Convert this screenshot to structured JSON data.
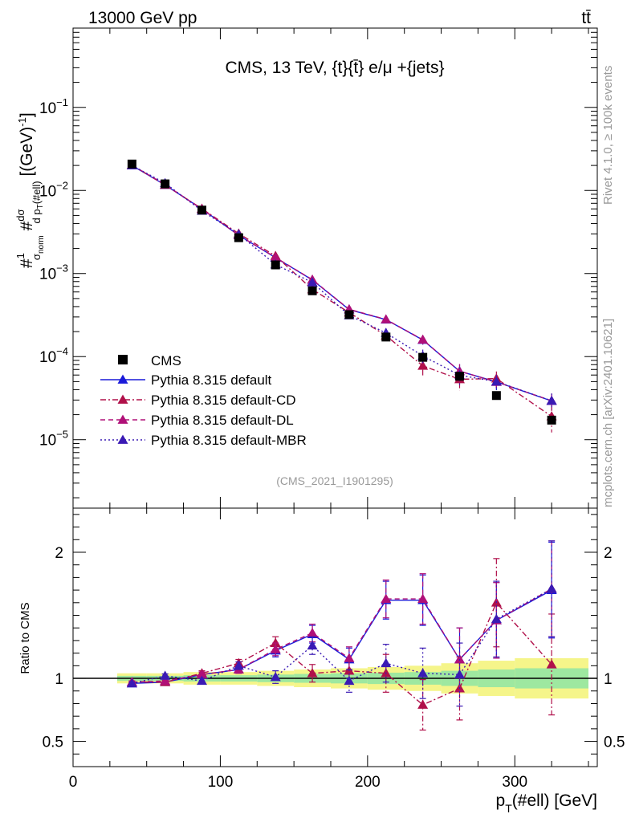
{
  "header": {
    "energy_label": "13000 GeV pp",
    "process_label": "tt̄"
  },
  "side_labels": {
    "rivet": "Rivet 4.1.0, ≥ 100k events",
    "site": "mcplots.cern.ch [arXiv:2401.10621]"
  },
  "chart_data": {
    "type": "scatter",
    "title": "CMS, 13 TeV, {t}{t̄} e/μ +{jets}",
    "analysis_id": "(CMS_2021_I1901295)",
    "xlabel": "p_T(#ell) [GeV]",
    "ylabel": "#frac{1}{σ_norm} #frac{dσ}{d p_T(#ell)} [(GeV)^-1]",
    "ratio_ylabel": "Ratio to CMS",
    "xlim": [
      0,
      356
    ],
    "ylim": [
      1.5e-06,
      0.9
    ],
    "ratio_ylim": [
      0.3,
      2.35
    ],
    "x_ticks": [
      0,
      100,
      200,
      300
    ],
    "y_ticks": [
      {
        "value": 0.1,
        "mantissa": "10",
        "exp": "−1"
      },
      {
        "value": 0.01,
        "mantissa": "10",
        "exp": "−2"
      },
      {
        "value": 0.001,
        "mantissa": "10",
        "exp": "−3"
      },
      {
        "value": 0.0001,
        "mantissa": "10",
        "exp": "−4"
      },
      {
        "value": 1e-05,
        "mantissa": "10",
        "exp": "−5"
      }
    ],
    "ratio_ticks": [
      {
        "value": 0.5,
        "label": "0.5"
      },
      {
        "value": 1,
        "label": "1"
      },
      {
        "value": 2,
        "label": "2"
      }
    ],
    "x": [
      40,
      62.5,
      87.5,
      112.5,
      137.5,
      162.5,
      187.5,
      212.5,
      237.5,
      262.5,
      287.5,
      325
    ],
    "data": {
      "name": "CMS",
      "values": [
        0.0208,
        0.012,
        0.0058,
        0.0027,
        0.00127,
        0.00062,
        0.00032,
        0.000172,
        9.8e-05,
        5.8e-05,
        3.4e-05,
        1.72e-05
      ],
      "rel_err": [
        0.02,
        0.02,
        0.02,
        0.025,
        0.03,
        0.035,
        0.04,
        0.045,
        0.05,
        0.06,
        0.07,
        0.08
      ]
    },
    "band_rel": [
      0.02,
      0.02,
      0.025,
      0.025,
      0.03,
      0.035,
      0.04,
      0.045,
      0.05,
      0.06,
      0.07,
      0.08
    ],
    "band_edges": [
      30,
      50,
      75,
      100,
      125,
      150,
      175,
      200,
      225,
      250,
      275,
      300,
      350
    ],
    "series": [
      {
        "name": "Pythia 8.315 default",
        "color": "#1a1ad9",
        "dash": "",
        "ratio": [
          0.96,
          0.97,
          1.03,
          1.07,
          1.22,
          1.35,
          1.15,
          1.62,
          1.62,
          1.15,
          1.46,
          1.7
        ],
        "ratio_err": [
          0.01,
          0.015,
          0.02,
          0.03,
          0.05,
          0.07,
          0.09,
          0.15,
          0.2,
          0.25,
          0.3,
          0.38
        ]
      },
      {
        "name": "Pythia 8.315 default-CD",
        "color": "#b0104a",
        "dash": "7,3,2,3",
        "ratio": [
          0.97,
          0.97,
          1.04,
          1.12,
          1.28,
          1.04,
          1.06,
          1.04,
          0.79,
          0.92,
          1.6,
          1.11
        ],
        "ratio_err": [
          0.01,
          0.015,
          0.02,
          0.03,
          0.05,
          0.07,
          0.09,
          0.15,
          0.2,
          0.25,
          0.35,
          0.4
        ]
      },
      {
        "name": "Pythia 8.315 default-DL",
        "color": "#b01078",
        "dash": "6,4",
        "ratio": [
          0.97,
          0.98,
          1.03,
          1.07,
          1.23,
          1.36,
          1.16,
          1.63,
          1.63,
          1.15,
          1.46,
          1.71
        ],
        "ratio_err": [
          0.01,
          0.015,
          0.02,
          0.03,
          0.05,
          0.07,
          0.09,
          0.15,
          0.2,
          0.25,
          0.3,
          0.38
        ]
      },
      {
        "name": "Pythia 8.315 default-MBR",
        "color": "#3a1ab4",
        "dash": "2,3",
        "ratio": [
          0.96,
          1.02,
          0.98,
          1.1,
          1.01,
          1.26,
          0.98,
          1.12,
          1.04,
          1.03,
          1.47,
          1.71
        ],
        "ratio_err": [
          0.01,
          0.015,
          0.02,
          0.03,
          0.05,
          0.07,
          0.09,
          0.15,
          0.2,
          0.25,
          0.3,
          0.38
        ]
      }
    ]
  }
}
